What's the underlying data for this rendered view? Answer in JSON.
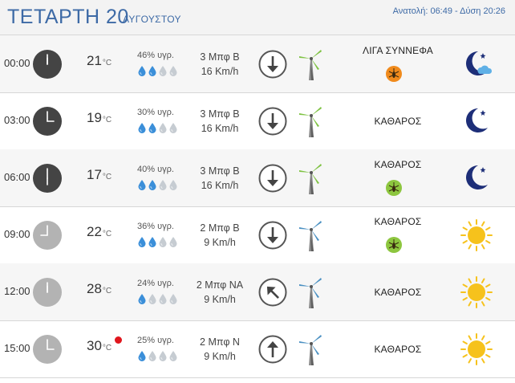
{
  "header": {
    "day": "ΤΕΤΑΡΤΗ 20",
    "month": "ΑΥΓΟΥΣΤΟΥ",
    "sun_times": "Ανατολή: 06:49 - Δύση 20:26"
  },
  "rows": [
    {
      "time": "00:00",
      "temp": "21",
      "unit": "°C",
      "humidity": "46% υγρ.",
      "drops_filled": 2,
      "wind_force": "3 Μπφ Β",
      "wind_speed": "16 Km/h",
      "wind_direction": "north",
      "condition": "ΛΙΓΑ ΣΥΝΝΕΦΑ",
      "mosquito": "orange",
      "icon": "moon-cloud-icon",
      "clock_style": "dark",
      "clock_hour": 0
    },
    {
      "time": "03:00",
      "temp": "19",
      "unit": "°C",
      "humidity": "30% υγρ.",
      "drops_filled": 2,
      "wind_force": "3 Μπφ Β",
      "wind_speed": "16 Km/h",
      "wind_direction": "north",
      "condition": "ΚΑΘΑΡΟΣ",
      "mosquito": "none",
      "icon": "moon-star-icon",
      "clock_style": "dark",
      "clock_hour": 3
    },
    {
      "time": "06:00",
      "temp": "17",
      "unit": "°C",
      "humidity": "40% υγρ.",
      "drops_filled": 2,
      "wind_force": "3 Μπφ Β",
      "wind_speed": "16 Km/h",
      "wind_direction": "north",
      "condition": "ΚΑΘΑΡΟΣ",
      "mosquito": "green",
      "icon": "moon-star-icon",
      "clock_style": "dark",
      "clock_hour": 6
    },
    {
      "time": "09:00",
      "temp": "22",
      "unit": "°C",
      "humidity": "36% υγρ.",
      "drops_filled": 2,
      "wind_force": "2 Μπφ Β",
      "wind_speed": "9 Km/h",
      "wind_direction": "north",
      "condition": "ΚΑΘΑΡΟΣ",
      "mosquito": "green",
      "icon": "sun-icon",
      "clock_style": "light",
      "clock_hour": 9
    },
    {
      "time": "12:00",
      "temp": "28",
      "unit": "°C",
      "humidity": "24% υγρ.",
      "drops_filled": 1,
      "wind_force": "2 Μπφ ΝΑ",
      "wind_speed": "9 Km/h",
      "wind_direction": "southeast",
      "condition": "ΚΑΘΑΡΟΣ",
      "mosquito": "none",
      "icon": "sun-icon",
      "clock_style": "light",
      "clock_hour": 12
    },
    {
      "time": "15:00",
      "temp": "30",
      "unit": "°C",
      "humidity": "25% υγρ.",
      "drops_filled": 1,
      "wind_force": "2 Μπφ Ν",
      "wind_speed": "9 Km/h",
      "wind_direction": "south",
      "condition": "ΚΑΘΑΡΟΣ",
      "mosquito": "none",
      "icon": "sun-icon",
      "clock_style": "light",
      "clock_hour": 15,
      "hot_marker": true
    }
  ],
  "colors": {
    "accent": "#3d6aa6",
    "clock_dark": "#444444",
    "clock_light": "#b3b3b3",
    "drop_filled": "#3b8fd9",
    "drop_empty": "#c6ccd2",
    "turbine_green": "#7ec242",
    "turbine_blue": "#4a90c2",
    "moon": "#1d2e78",
    "sun": "#f6c21c",
    "mosquito_orange": "#f08a1c",
    "mosquito_green": "#8dc63f",
    "hot_marker": "#e0161d"
  }
}
